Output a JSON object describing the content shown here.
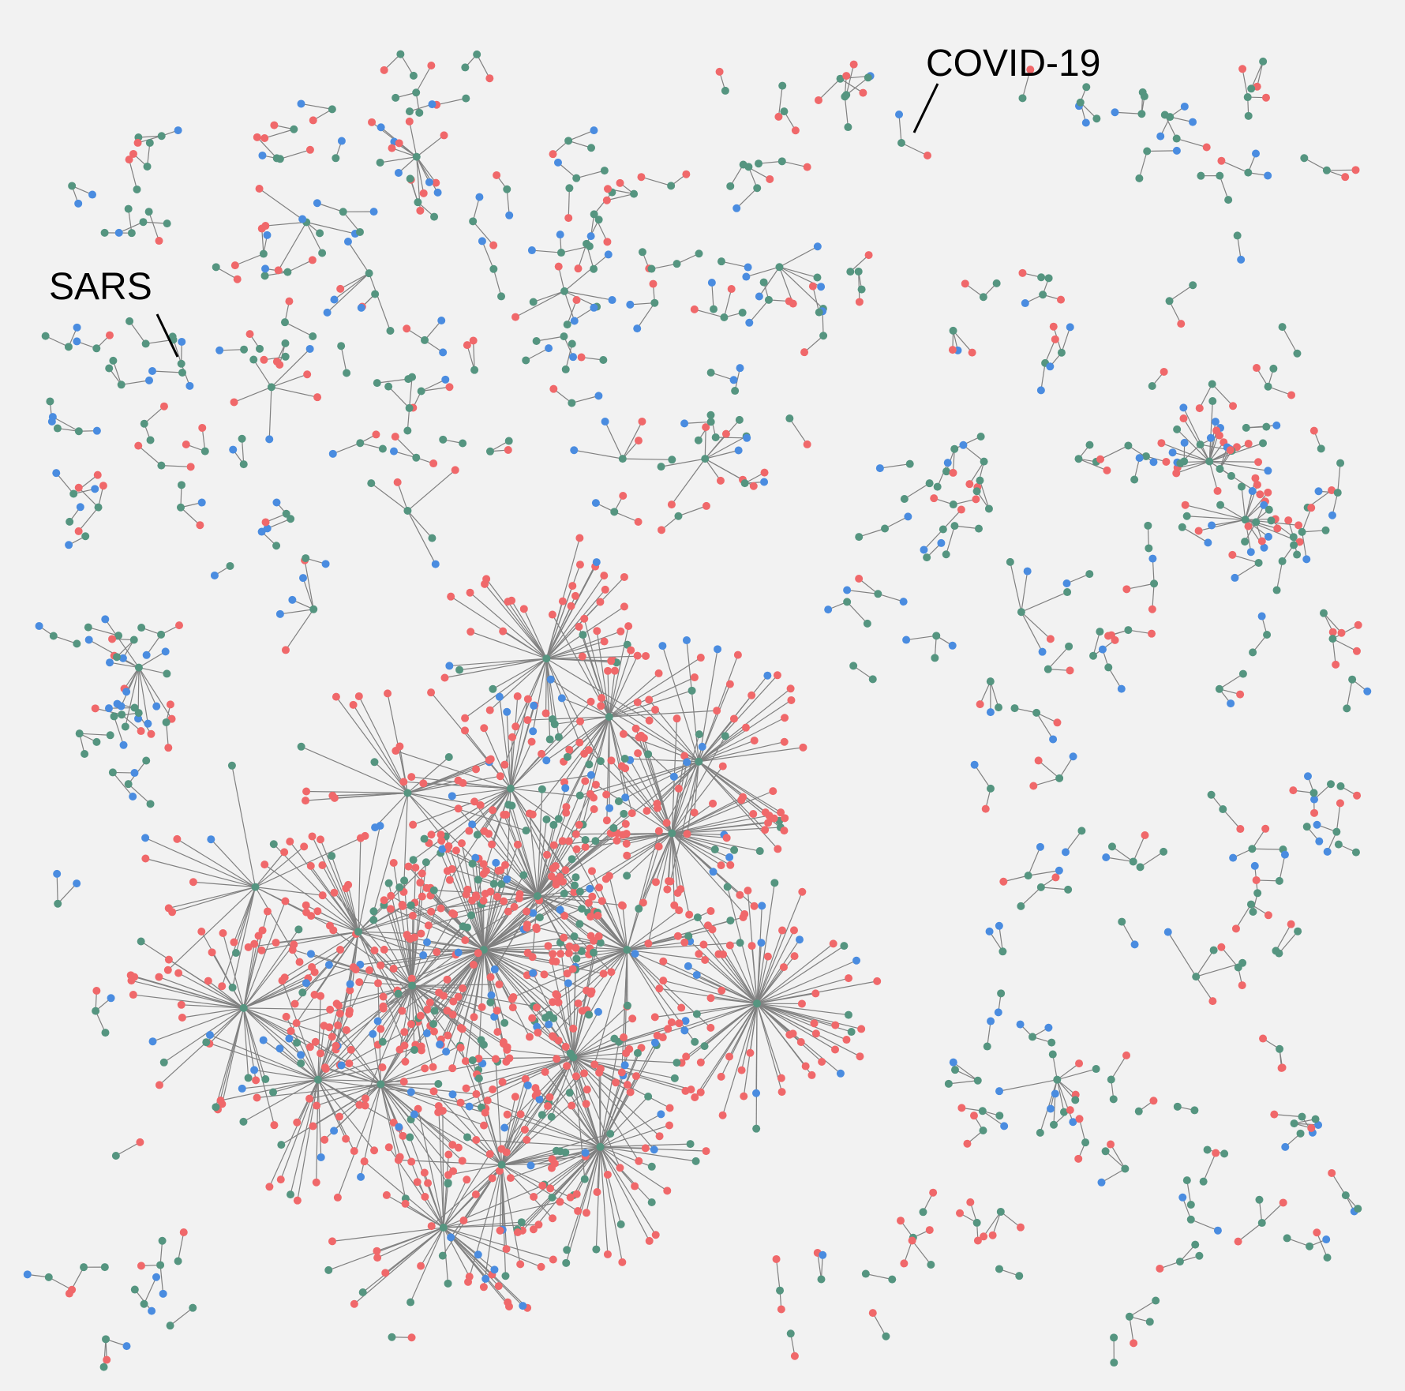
{
  "annotations": {
    "covid": "COVID-19",
    "sars": "SARS"
  },
  "colors": {
    "background": "#f2f2f2",
    "edge": "#808080",
    "node_red": "#f0686a",
    "node_green": "#559580",
    "node_blue": "#4a8ce0"
  }
}
